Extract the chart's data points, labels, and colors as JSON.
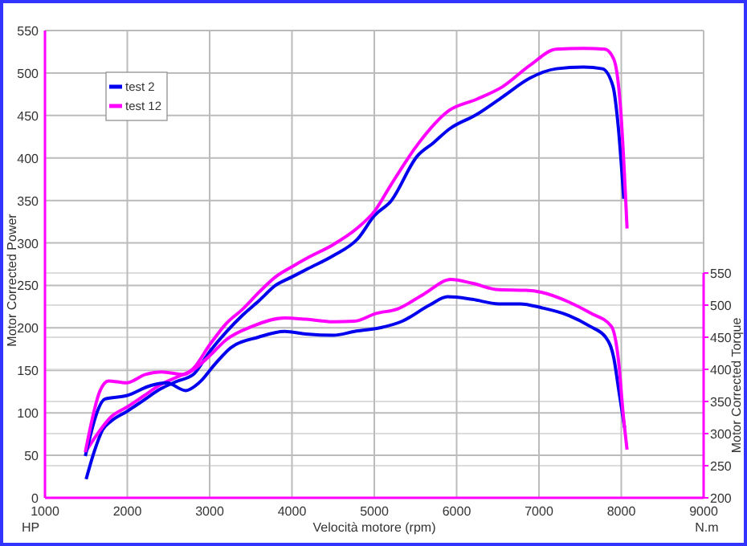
{
  "chart_data": {
    "type": "line",
    "xlabel": "Velocità motore (rpm)",
    "ylabel": "Motor Corrected Power",
    "y2label": "Motor Corrected Torque",
    "annotations": [
      "HP",
      "N.m"
    ],
    "xlim": [
      1000,
      9000
    ],
    "xticks": [
      1000,
      2000,
      3000,
      4000,
      5000,
      6000,
      7000,
      8000,
      9000
    ],
    "ylim": [
      0,
      550
    ],
    "yticks": [
      0,
      50,
      100,
      150,
      200,
      250,
      300,
      350,
      400,
      450,
      500,
      550
    ],
    "y2lim": [
      200,
      550
    ],
    "y2ticks": [
      200,
      250,
      300,
      350,
      400,
      450,
      500,
      550
    ],
    "grid": true,
    "legend": "top left",
    "marker": "none",
    "line_style": "solid",
    "series": [
      {
        "name": "test 2",
        "color": "#0000ee",
        "x": [
          1500,
          1600,
          1700,
          1800,
          2000,
          2200,
          2400,
          2600,
          2800,
          3000,
          3200,
          3400,
          3600,
          3800,
          4000,
          4200,
          4500,
          4800,
          5000,
          5200,
          5520,
          5720,
          5910,
          6240,
          6560,
          6890,
          7210,
          7540,
          7770,
          7900,
          7960,
          8030
        ],
        "values": [
          22,
          55,
          80,
          90,
          102,
          115,
          128,
          137,
          145,
          172,
          195,
          215,
          232,
          250,
          260,
          270,
          285,
          305,
          332,
          349,
          402,
          418,
          434,
          451,
          472,
          494,
          505,
          507,
          505,
          484,
          440,
          352
        ]
      },
      {
        "name": "test 12",
        "color": "#ff00ff",
        "x": [
          1500,
          1600,
          1800,
          2000,
          2200,
          2400,
          2600,
          2800,
          3000,
          3200,
          3400,
          3600,
          3800,
          4000,
          4200,
          4500,
          4800,
          5000,
          5200,
          5520,
          5910,
          6240,
          6560,
          6890,
          7210,
          7540,
          7800,
          7910,
          7990,
          8070
        ],
        "values": [
          55,
          70,
          95,
          107,
          120,
          133,
          142,
          152,
          180,
          205,
          222,
          242,
          260,
          272,
          283,
          298,
          318,
          337,
          368,
          415,
          456,
          469,
          484,
          509,
          528,
          529,
          528,
          516,
          460,
          317
        ]
      },
      {
        "color": "#0000ee",
        "axis": "y2",
        "x": [
          1490,
          1730,
          1990,
          2290,
          2480,
          2710,
          2870,
          3070,
          3260,
          3590,
          3910,
          4170,
          4500,
          4760,
          5080,
          5340,
          5670,
          5890,
          6190,
          6510,
          6770,
          7030,
          7360,
          7620,
          7810,
          7910,
          7970,
          8040
        ],
        "values": [
          265,
          354,
          359,
          375,
          379,
          367,
          379,
          409,
          434,
          450,
          459,
          455,
          453,
          459,
          465,
          475,
          500,
          513,
          509,
          502,
          502,
          496,
          484,
          467,
          450,
          417,
          367,
          309
        ]
      },
      {
        "color": "#ff00ff",
        "axis": "y2",
        "x": [
          1490,
          1670,
          1770,
          1990,
          2220,
          2420,
          2680,
          2810,
          3000,
          3200,
          3520,
          3910,
          4170,
          4500,
          4760,
          5020,
          5280,
          5600,
          5930,
          6190,
          6510,
          6840,
          7030,
          7360,
          7620,
          7880,
          7970,
          8020,
          8070
        ],
        "values": [
          271,
          367,
          382,
          379,
          392,
          396,
          392,
          400,
          421,
          446,
          467,
          480,
          478,
          474,
          475,
          487,
          494,
          517,
          540,
          534,
          524,
          523,
          520,
          505,
          488,
          467,
          409,
          334,
          275
        ]
      }
    ]
  }
}
